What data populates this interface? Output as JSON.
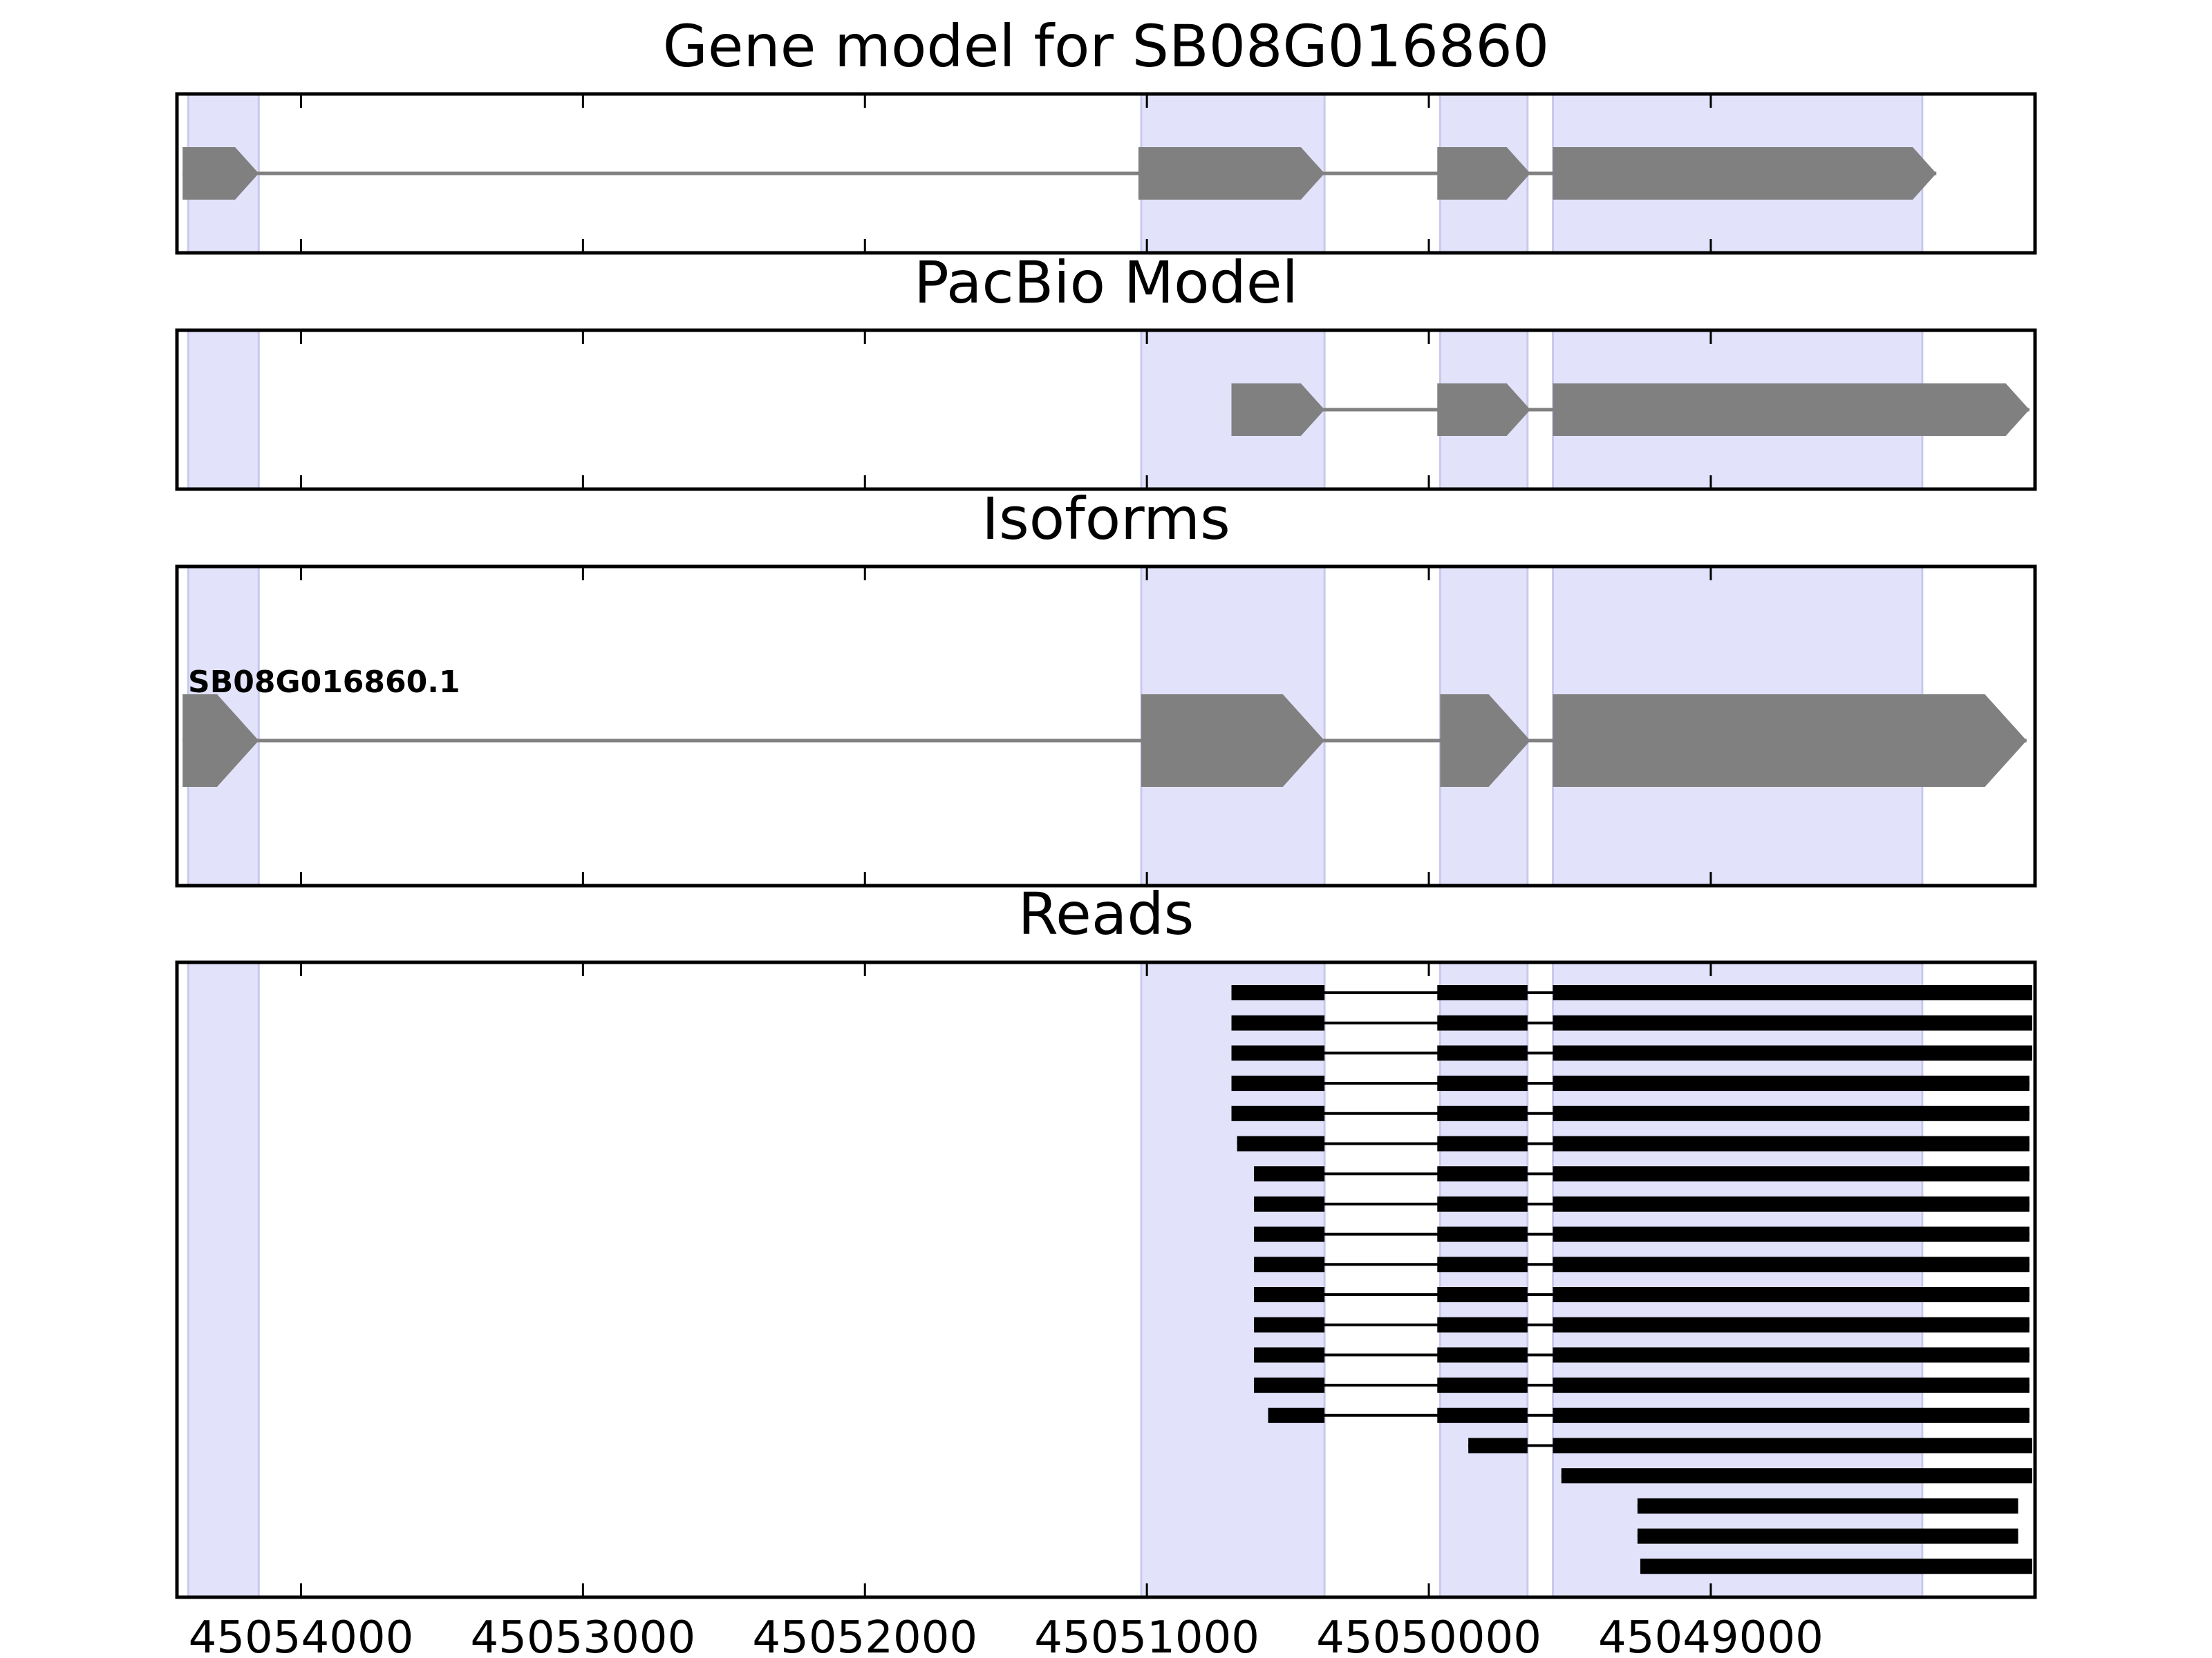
{
  "figure": {
    "titles": {
      "gene_model": "Gene model for SB08G016860",
      "pacbio": "PacBio Model",
      "isoforms": "Isoforms",
      "reads": "Reads"
    },
    "isoform_label": "SB08G016860.1",
    "x_ticks": [
      {
        "value": 45054000,
        "label": "45054000"
      },
      {
        "value": 45053000,
        "label": "45053000"
      },
      {
        "value": 45052000,
        "label": "45052000"
      },
      {
        "value": 45051000,
        "label": "45051000"
      },
      {
        "value": 45050000,
        "label": "45050000"
      },
      {
        "value": 45049000,
        "label": "45049000"
      }
    ],
    "x_axis_direction": "descending",
    "colors": {
      "exon_shade": "#e2e2fb",
      "exon_shade_edge": "#c9c9ee",
      "model_fill": "#808080",
      "intron_line": "#808080",
      "read_fill": "#000000",
      "frame": "#000000"
    }
  },
  "chart_data": {
    "type": "gene_track",
    "x_range": [
      45054440,
      45047850
    ],
    "shaded_exons": [
      [
        45054400,
        45054150
      ],
      [
        45051020,
        45050370
      ],
      [
        45049960,
        45049650
      ],
      [
        45049560,
        45048250
      ]
    ],
    "gene_model": {
      "strand": "-",
      "exons": [
        [
          45054420,
          45054150
        ],
        [
          45051030,
          45050370
        ],
        [
          45049970,
          45049640
        ],
        [
          45049560,
          45048200
        ]
      ]
    },
    "pacbio_model": {
      "strand": "-",
      "exons": [
        [
          45050700,
          45050370
        ],
        [
          45049970,
          45049640
        ],
        [
          45049560,
          45047870
        ]
      ]
    },
    "isoforms": [
      {
        "name": "SB08G016860.1",
        "strand": "-",
        "exons": [
          [
            45054420,
            45054150
          ],
          [
            45051020,
            45050370
          ],
          [
            45049960,
            45049640
          ],
          [
            45049560,
            45047880
          ]
        ]
      }
    ],
    "reads": [
      [
        [
          45050700,
          45050370
        ],
        [
          45049970,
          45049650
        ],
        [
          45049560,
          45047860
        ]
      ],
      [
        [
          45050700,
          45050370
        ],
        [
          45049970,
          45049650
        ],
        [
          45049560,
          45047860
        ]
      ],
      [
        [
          45050700,
          45050370
        ],
        [
          45049970,
          45049650
        ],
        [
          45049560,
          45047860
        ]
      ],
      [
        [
          45050700,
          45050370
        ],
        [
          45049970,
          45049650
        ],
        [
          45049560,
          45047870
        ]
      ],
      [
        [
          45050700,
          45050370
        ],
        [
          45049970,
          45049650
        ],
        [
          45049560,
          45047870
        ]
      ],
      [
        [
          45050680,
          45050370
        ],
        [
          45049970,
          45049650
        ],
        [
          45049560,
          45047870
        ]
      ],
      [
        [
          45050620,
          45050370
        ],
        [
          45049970,
          45049650
        ],
        [
          45049560,
          45047870
        ]
      ],
      [
        [
          45050620,
          45050370
        ],
        [
          45049970,
          45049650
        ],
        [
          45049560,
          45047870
        ]
      ],
      [
        [
          45050620,
          45050370
        ],
        [
          45049970,
          45049650
        ],
        [
          45049560,
          45047870
        ]
      ],
      [
        [
          45050620,
          45050370
        ],
        [
          45049970,
          45049650
        ],
        [
          45049560,
          45047870
        ]
      ],
      [
        [
          45050620,
          45050370
        ],
        [
          45049970,
          45049650
        ],
        [
          45049560,
          45047870
        ]
      ],
      [
        [
          45050620,
          45050370
        ],
        [
          45049970,
          45049650
        ],
        [
          45049560,
          45047870
        ]
      ],
      [
        [
          45050620,
          45050370
        ],
        [
          45049970,
          45049650
        ],
        [
          45049560,
          45047870
        ]
      ],
      [
        [
          45050620,
          45050370
        ],
        [
          45049970,
          45049650
        ],
        [
          45049560,
          45047870
        ]
      ],
      [
        [
          45050570,
          45050370
        ],
        [
          45049970,
          45049650
        ],
        [
          45049560,
          45047870
        ]
      ],
      [
        [
          45049860,
          45049650
        ],
        [
          45049560,
          45047860
        ]
      ],
      [
        [
          45049530,
          45047860
        ]
      ],
      [
        [
          45049260,
          45047910
        ]
      ],
      [
        [
          45049260,
          45047910
        ]
      ],
      [
        [
          45049250,
          45047860
        ]
      ]
    ]
  }
}
